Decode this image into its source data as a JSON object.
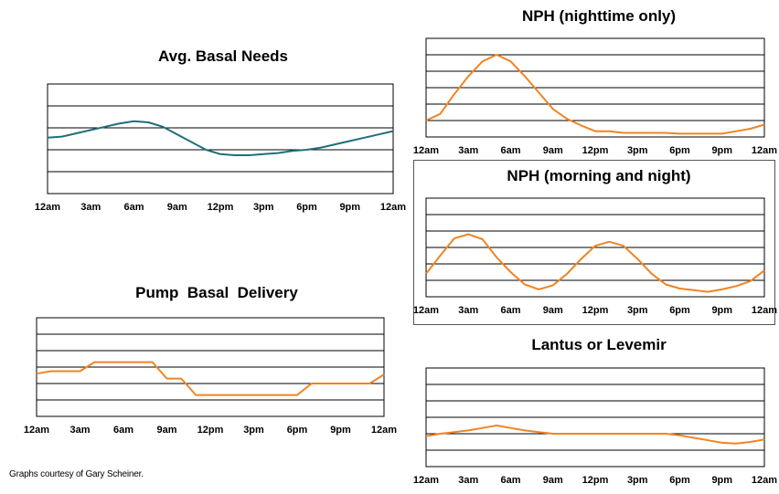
{
  "footer": {
    "credit": "Graphs courtesy of Gary Scheiner."
  },
  "colors": {
    "teal": "#1f6f7a",
    "orange": "#f08422",
    "grid": "#000000"
  },
  "chart_data": [
    {
      "id": "basal",
      "type": "line",
      "title": "Avg. Basal Needs",
      "color": "teal",
      "x_ticks": [
        "12am",
        "3am",
        "6am",
        "9am",
        "12pm",
        "3pm",
        "6pm",
        "9pm",
        "12am"
      ],
      "x": [
        0,
        1,
        2,
        3,
        4,
        5,
        6,
        7,
        8,
        9,
        10,
        11,
        12,
        13,
        14,
        15,
        16,
        17,
        18,
        19,
        20,
        21,
        22,
        23,
        24
      ],
      "values": [
        2.55,
        2.6,
        2.75,
        2.9,
        3.05,
        3.2,
        3.3,
        3.25,
        3.05,
        2.7,
        2.35,
        2.0,
        1.8,
        1.75,
        1.75,
        1.8,
        1.85,
        1.95,
        2.0,
        2.1,
        2.25,
        2.4,
        2.55,
        2.7,
        2.85
      ],
      "ylim": [
        0,
        5
      ],
      "gridlines": 5
    },
    {
      "id": "pump",
      "type": "line",
      "title": "Pump  Basal  Delivery",
      "color": "orange",
      "x_ticks": [
        "12am",
        "3am",
        "6am",
        "9am",
        "12pm",
        "3pm",
        "6pm",
        "9pm",
        "12am"
      ],
      "x": [
        0,
        1,
        2,
        3,
        4,
        5,
        6,
        7,
        8,
        9,
        10,
        11,
        12,
        13,
        14,
        15,
        16,
        17,
        18,
        19,
        20,
        21,
        22,
        23,
        24
      ],
      "values": [
        2.6,
        2.75,
        2.75,
        2.75,
        3.3,
        3.3,
        3.3,
        3.3,
        3.3,
        2.3,
        2.3,
        1.3,
        1.3,
        1.3,
        1.3,
        1.3,
        1.3,
        1.3,
        1.3,
        2.0,
        2.0,
        2.0,
        2.0,
        2.0,
        2.55
      ],
      "ylim": [
        0,
        6
      ],
      "gridlines": 6
    },
    {
      "id": "nph-night",
      "type": "line",
      "title": "NPH (nighttime only)",
      "color": "orange",
      "x_ticks": [
        "12am",
        "3am",
        "6am",
        "9am",
        "12pm",
        "3pm",
        "6pm",
        "9pm",
        "12am"
      ],
      "x": [
        0,
        1,
        2,
        3,
        4,
        5,
        6,
        7,
        8,
        9,
        10,
        11,
        12,
        13,
        14,
        15,
        16,
        17,
        18,
        19,
        20,
        21,
        22,
        23,
        24
      ],
      "values": [
        1.0,
        1.4,
        2.6,
        3.7,
        4.6,
        5.0,
        4.6,
        3.7,
        2.7,
        1.7,
        1.1,
        0.7,
        0.35,
        0.35,
        0.25,
        0.25,
        0.25,
        0.25,
        0.2,
        0.2,
        0.2,
        0.2,
        0.35,
        0.5,
        0.75
      ],
      "ylim": [
        0,
        6
      ],
      "gridlines": 6
    },
    {
      "id": "nph-both",
      "type": "line",
      "title": "NPH (morning and night)",
      "color": "orange",
      "x_ticks": [
        "12am",
        "3am",
        "6am",
        "9am",
        "12pm",
        "3pm",
        "6pm",
        "9pm",
        "12am"
      ],
      "x": [
        0,
        1,
        2,
        3,
        4,
        5,
        6,
        7,
        8,
        9,
        10,
        11,
        12,
        13,
        14,
        15,
        16,
        17,
        18,
        19,
        20,
        21,
        22,
        23,
        24
      ],
      "values": [
        1.4,
        2.5,
        3.55,
        3.8,
        3.5,
        2.4,
        1.5,
        0.75,
        0.45,
        0.7,
        1.4,
        2.3,
        3.1,
        3.35,
        3.1,
        2.3,
        1.4,
        0.75,
        0.5,
        0.4,
        0.3,
        0.45,
        0.65,
        0.95,
        1.6
      ],
      "ylim": [
        0,
        6
      ],
      "gridlines": 6
    },
    {
      "id": "lantus",
      "type": "line",
      "title": "Lantus or Levemir",
      "color": "orange",
      "x_ticks": [
        "12am",
        "3am",
        "6am",
        "9am",
        "12pm",
        "3pm",
        "6pm",
        "9pm",
        "12am"
      ],
      "x": [
        0,
        1,
        2,
        3,
        4,
        5,
        6,
        7,
        8,
        9,
        10,
        11,
        12,
        13,
        14,
        15,
        16,
        17,
        18,
        19,
        20,
        21,
        22,
        23,
        24
      ],
      "values": [
        1.85,
        2.0,
        2.1,
        2.2,
        2.35,
        2.5,
        2.35,
        2.2,
        2.1,
        2.0,
        2.0,
        2.0,
        2.0,
        2.0,
        2.0,
        2.0,
        2.0,
        2.0,
        1.9,
        1.75,
        1.6,
        1.45,
        1.4,
        1.5,
        1.65
      ],
      "ylim": [
        0,
        6
      ],
      "gridlines": 6
    }
  ]
}
